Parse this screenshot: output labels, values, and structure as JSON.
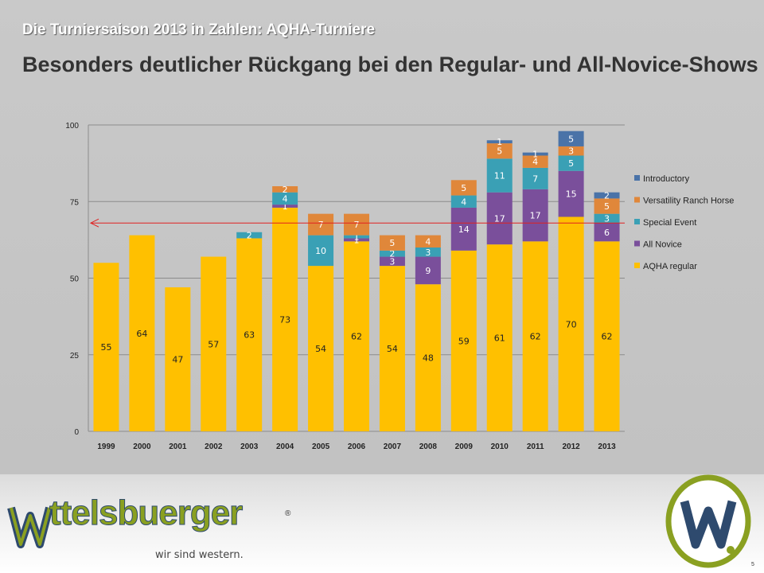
{
  "subtitle": "Die Turniersaison 2013 in Zahlen: AQHA-Turniere",
  "title": "Besonders deutlicher Rückgang bei den Regular- und All-Novice-Shows",
  "chart_data": {
    "type": "bar",
    "stacked": true,
    "categories": [
      "1999",
      "2000",
      "2001",
      "2002",
      "2003",
      "2004",
      "2005",
      "2006",
      "2007",
      "2008",
      "2009",
      "2010",
      "2011",
      "2012",
      "2013"
    ],
    "series": [
      {
        "name": "AQHA regular",
        "color": "#ffc000",
        "values": [
          55,
          64,
          47,
          57,
          63,
          73,
          54,
          62,
          54,
          48,
          59,
          61,
          62,
          70,
          62
        ]
      },
      {
        "name": "All Novice",
        "color": "#7a4f9b",
        "values": [
          0,
          0,
          0,
          0,
          0,
          1,
          0,
          1,
          3,
          9,
          14,
          17,
          17,
          15,
          6
        ]
      },
      {
        "name": "Special Event",
        "color": "#3aa0b5",
        "values": [
          0,
          0,
          0,
          0,
          2,
          4,
          10,
          1,
          2,
          3,
          4,
          11,
          7,
          5,
          3
        ]
      },
      {
        "name": "Versatility Ranch Horse",
        "color": "#e0873a",
        "values": [
          0,
          0,
          0,
          0,
          0,
          2,
          7,
          7,
          5,
          4,
          5,
          5,
          4,
          3,
          5
        ]
      },
      {
        "name": "Introductory",
        "color": "#4a73a8",
        "values": [
          0,
          0,
          0,
          0,
          0,
          0,
          0,
          0,
          0,
          0,
          0,
          1,
          1,
          5,
          2
        ]
      }
    ],
    "ylim": [
      0,
      100
    ],
    "yticks": [
      0,
      25,
      50,
      75,
      100
    ],
    "reference_line": 68,
    "legend_position": "right",
    "grid": true
  },
  "logo": {
    "brand": "ttelsbuerger",
    "registered": "®",
    "slogan": "wir sind western."
  },
  "page_number": "5"
}
